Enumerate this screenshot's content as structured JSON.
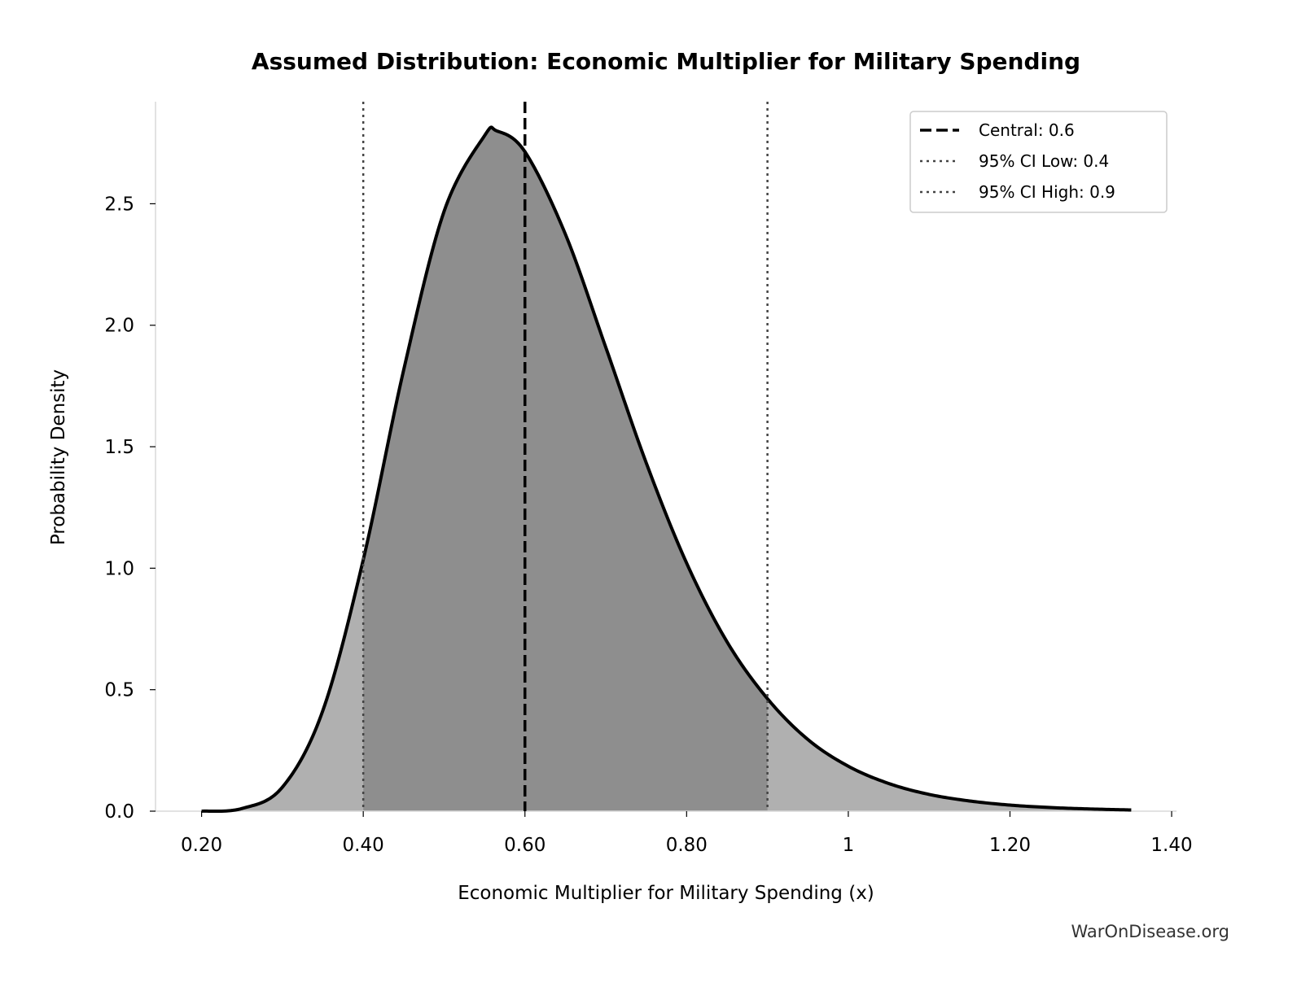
{
  "chart_data": {
    "type": "area",
    "title": "Assumed Distribution: Economic Multiplier for Military Spending",
    "xlabel": "Economic Multiplier for Military Spending (x)",
    "ylabel": "Probability Density",
    "xlim": [
      0.143,
      1.406
    ],
    "ylim": [
      0,
      2.92
    ],
    "xticks": [
      0.2,
      0.4,
      0.6,
      0.8,
      1.0,
      1.2,
      1.4
    ],
    "xtick_labels": [
      "0.20",
      "0.40",
      "0.60",
      "0.80",
      "1",
      "1.20",
      "1.40"
    ],
    "yticks": [
      0,
      0.5,
      1.0,
      1.5,
      2.0,
      2.5
    ],
    "ytick_labels": [
      "0.0",
      "0.5",
      "1.0",
      "1.5",
      "2.0",
      "2.5"
    ],
    "grid": false,
    "legend_position": "top-right",
    "x": [
      0.2,
      0.25,
      0.3,
      0.35,
      0.4,
      0.45,
      0.5,
      0.55,
      0.565,
      0.6,
      0.65,
      0.7,
      0.75,
      0.8,
      0.85,
      0.9,
      0.95,
      1.0,
      1.05,
      1.1,
      1.15,
      1.2,
      1.25,
      1.3,
      1.35
    ],
    "y": [
      0.0,
      0.011,
      0.099,
      0.414,
      1.035,
      1.816,
      2.469,
      2.78,
      2.8,
      2.714,
      2.375,
      1.909,
      1.434,
      1.021,
      0.697,
      0.463,
      0.295,
      0.185,
      0.114,
      0.069,
      0.042,
      0.025,
      0.015,
      0.009,
      0.005
    ],
    "ci_shaded_range": [
      0.4,
      0.9
    ],
    "reference_lines": [
      {
        "name": "Central: 0.6",
        "x": 0.6,
        "style": "dashed",
        "color": "#000000"
      },
      {
        "name": "95% CI Low: 0.4",
        "x": 0.4,
        "style": "dotted",
        "color": "#444444"
      },
      {
        "name": "95% CI High: 0.9",
        "x": 0.9,
        "style": "dotted",
        "color": "#444444"
      }
    ],
    "colors": {
      "tail_fill": "#b0b0b0",
      "ci_fill": "#8e8e8e",
      "curve": "#000000",
      "spine": "#d8d8d8"
    }
  },
  "watermark": "WarOnDisease.org"
}
